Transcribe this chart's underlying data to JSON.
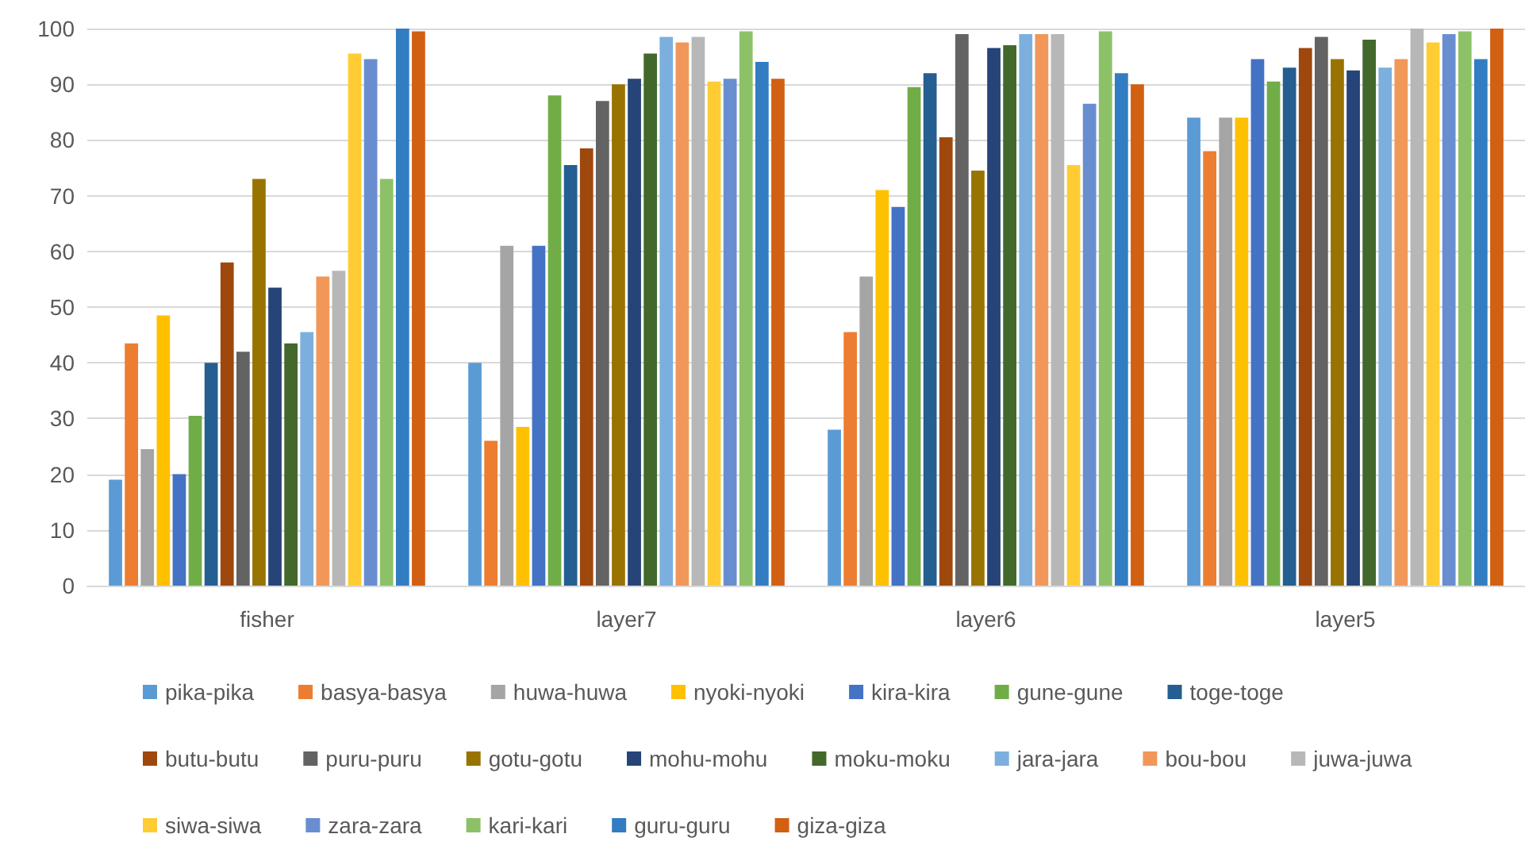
{
  "chart_data": {
    "type": "bar",
    "categories": [
      "fisher",
      "layer7",
      "layer6",
      "layer5"
    ],
    "ylim": [
      0,
      100
    ],
    "yticks": [
      0,
      10,
      20,
      30,
      40,
      50,
      60,
      70,
      80,
      90,
      100
    ],
    "grid": "y",
    "legend": "bottom",
    "series": [
      {
        "name": "pika-pika",
        "color": "#5b9bd5",
        "values": [
          19,
          40,
          28,
          84
        ]
      },
      {
        "name": "basya-basya",
        "color": "#ed7d31",
        "values": [
          43.5,
          26,
          45.5,
          78
        ]
      },
      {
        "name": "huwa-huwa",
        "color": "#a5a5a5",
        "values": [
          24.5,
          61,
          55.5,
          84
        ]
      },
      {
        "name": "nyoki-nyoki",
        "color": "#ffc000",
        "values": [
          48.5,
          28.5,
          71,
          84
        ]
      },
      {
        "name": "kira-kira",
        "color": "#4472c4",
        "values": [
          20,
          61,
          68,
          94.5
        ]
      },
      {
        "name": "gune-gune",
        "color": "#70ad47",
        "values": [
          30.5,
          88,
          89.5,
          90.5
        ]
      },
      {
        "name": "toge-toge",
        "color": "#255e91",
        "values": [
          40,
          75.5,
          92,
          93
        ]
      },
      {
        "name": "butu-butu",
        "color": "#9e480e",
        "values": [
          58,
          78.5,
          80.5,
          96.5
        ]
      },
      {
        "name": "puru-puru",
        "color": "#636363",
        "values": [
          42,
          87,
          99,
          98.5
        ]
      },
      {
        "name": "gotu-gotu",
        "color": "#997300",
        "values": [
          73,
          90,
          74.5,
          94.5
        ]
      },
      {
        "name": "mohu-mohu",
        "color": "#264478",
        "values": [
          53.5,
          91,
          96.5,
          92.5
        ]
      },
      {
        "name": "moku-moku",
        "color": "#43682b",
        "values": [
          43.5,
          95.5,
          97,
          98
        ]
      },
      {
        "name": "jara-jara",
        "color": "#7cafdd",
        "values": [
          45.5,
          98.5,
          99,
          93
        ]
      },
      {
        "name": "bou-bou",
        "color": "#f1975a",
        "values": [
          55.5,
          97.5,
          99,
          94.5
        ]
      },
      {
        "name": "juwa-juwa",
        "color": "#b7b7b7",
        "values": [
          56.5,
          98.5,
          99,
          100
        ]
      },
      {
        "name": "siwa-siwa",
        "color": "#ffcd33",
        "values": [
          95.5,
          90.5,
          75.5,
          97.5
        ]
      },
      {
        "name": "zara-zara",
        "color": "#698ed0",
        "values": [
          94.5,
          91,
          86.5,
          99
        ]
      },
      {
        "name": "kari-kari",
        "color": "#8cc168",
        "values": [
          73,
          99.5,
          99.5,
          99.5
        ]
      },
      {
        "name": "guru-guru",
        "color": "#327dc2",
        "values": [
          100,
          94,
          92,
          94.5
        ]
      },
      {
        "name": "giza-giza",
        "color": "#d26012",
        "values": [
          99.5,
          91,
          90,
          100
        ]
      }
    ]
  }
}
